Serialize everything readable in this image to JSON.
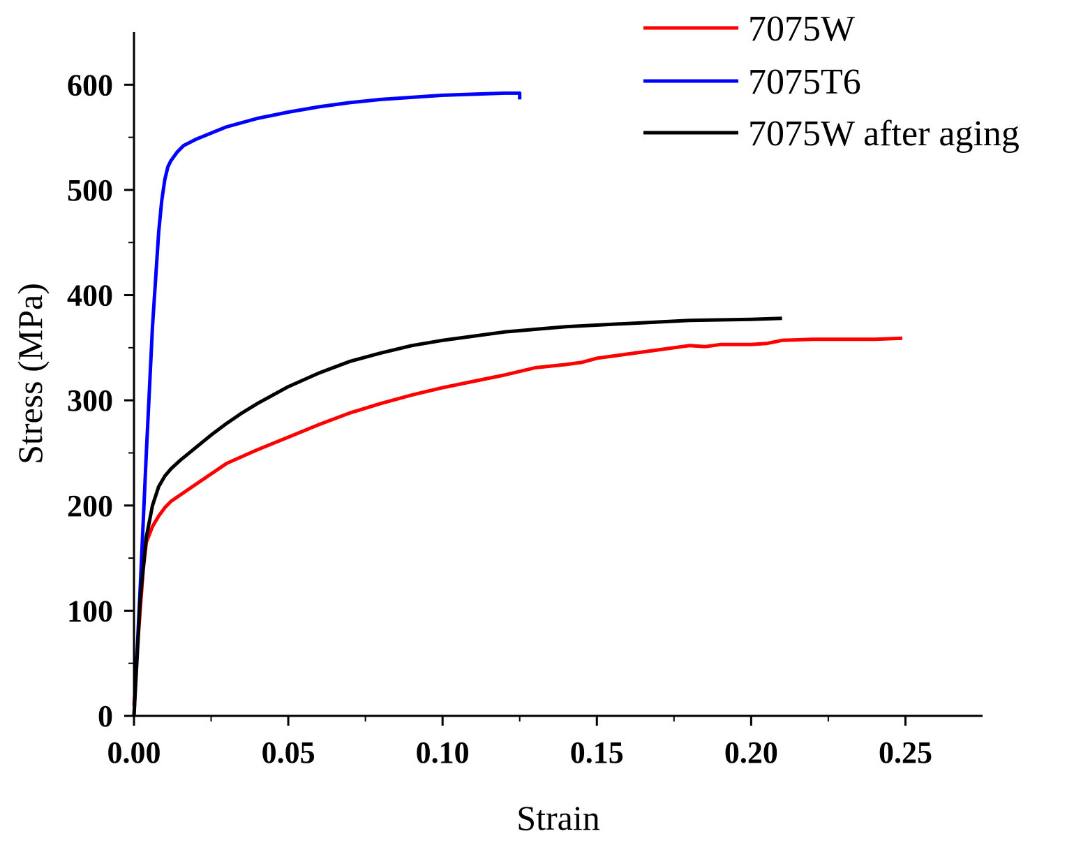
{
  "chart_data": {
    "type": "line",
    "title": "",
    "xlabel": "Strain",
    "ylabel": "Stress (MPa)",
    "xlim": [
      0,
      0.275
    ],
    "ylim": [
      0,
      650
    ],
    "x_ticks": [
      0.0,
      0.05,
      0.1,
      0.15,
      0.2,
      0.25
    ],
    "x_tick_labels": [
      "0.00",
      "0.05",
      "0.10",
      "0.15",
      "0.20",
      "0.25"
    ],
    "x_minor_ticks": [
      0.025,
      0.075,
      0.125,
      0.175,
      0.225
    ],
    "y_ticks": [
      0,
      100,
      200,
      300,
      400,
      500,
      600
    ],
    "y_tick_labels": [
      "0",
      "100",
      "200",
      "300",
      "400",
      "500",
      "600"
    ],
    "y_minor_ticks": [
      50,
      150,
      250,
      350,
      450,
      550
    ],
    "grid": false,
    "legend_position": "top-right",
    "series": [
      {
        "name": "7075W",
        "color": "#ff0000",
        "x": [
          0.0,
          0.0015,
          0.003,
          0.004,
          0.006,
          0.008,
          0.01,
          0.012,
          0.015,
          0.02,
          0.025,
          0.03,
          0.04,
          0.05,
          0.06,
          0.07,
          0.08,
          0.09,
          0.1,
          0.11,
          0.12,
          0.13,
          0.14,
          0.145,
          0.15,
          0.16,
          0.17,
          0.18,
          0.185,
          0.19,
          0.2,
          0.205,
          0.21,
          0.22,
          0.23,
          0.24,
          0.249
        ],
        "y": [
          10,
          80,
          140,
          165,
          180,
          190,
          198,
          204,
          210,
          220,
          230,
          240,
          253,
          265,
          277,
          288,
          297,
          305,
          312,
          318,
          324,
          331,
          334,
          336,
          340,
          344,
          348,
          352,
          351,
          353,
          353,
          354,
          357,
          358,
          358,
          358,
          359
        ]
      },
      {
        "name": "7075T6",
        "color": "#0000ff",
        "x": [
          0.0,
          0.002,
          0.004,
          0.006,
          0.008,
          0.009,
          0.01,
          0.011,
          0.012,
          0.014,
          0.016,
          0.02,
          0.025,
          0.03,
          0.04,
          0.05,
          0.06,
          0.07,
          0.08,
          0.09,
          0.1,
          0.11,
          0.12,
          0.125,
          0.125
        ],
        "y": [
          0,
          120,
          250,
          370,
          460,
          490,
          510,
          522,
          528,
          536,
          542,
          548,
          554,
          560,
          568,
          574,
          579,
          583,
          586,
          588,
          590,
          591,
          592,
          592,
          586
        ]
      },
      {
        "name": "7075W after aging",
        "color": "#000000",
        "x": [
          0.0,
          0.002,
          0.004,
          0.006,
          0.008,
          0.01,
          0.012,
          0.015,
          0.02,
          0.025,
          0.03,
          0.035,
          0.04,
          0.05,
          0.06,
          0.07,
          0.08,
          0.09,
          0.1,
          0.12,
          0.14,
          0.16,
          0.18,
          0.2,
          0.21
        ],
        "y": [
          0,
          110,
          170,
          200,
          218,
          228,
          235,
          243,
          255,
          267,
          278,
          288,
          297,
          313,
          326,
          337,
          345,
          352,
          357,
          365,
          370,
          373,
          376,
          377,
          378
        ]
      }
    ]
  }
}
